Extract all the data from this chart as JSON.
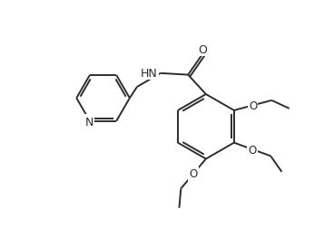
{
  "background_color": "#ffffff",
  "line_color": "#2d2d2d",
  "line_width": 1.4,
  "figsize": [
    3.68,
    2.53
  ],
  "dpi": 100,
  "xlim": [
    0,
    10
  ],
  "ylim": [
    0,
    7
  ]
}
